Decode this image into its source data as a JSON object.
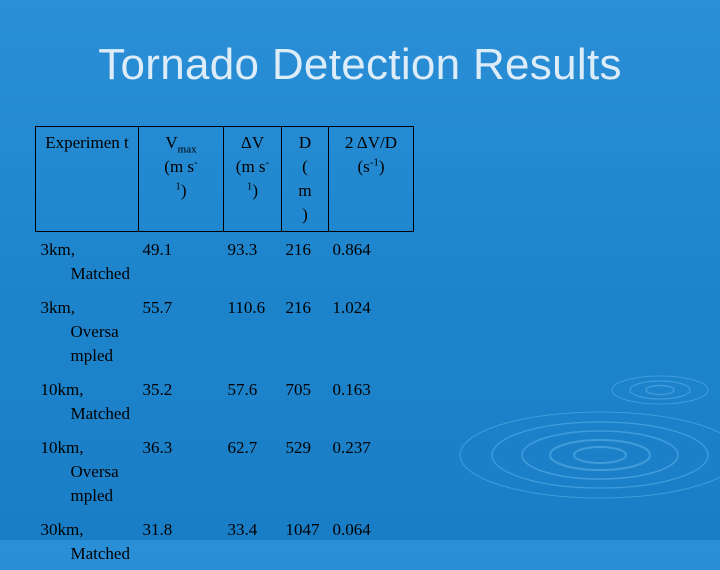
{
  "slide": {
    "title": "Tornado Detection Results"
  },
  "table": {
    "headers": {
      "experiment": "Experimen t",
      "vmax": {
        "base": "V",
        "sub": "max",
        "units_open": "(m s",
        "sup": "-1",
        "units_close": ")"
      },
      "delta_v": {
        "base": "ΔV",
        "units_open": "(m s",
        "sup": "-1",
        "units_close": ")"
      },
      "d": {
        "base": "D",
        "units": "( m )"
      },
      "ratio": {
        "base": "2 ΔV/D",
        "units_open": "(s",
        "sup": "-1",
        "units_close": ")"
      }
    },
    "rows": [
      {
        "experiment_line1": "3km,",
        "experiment_rest": "Matched",
        "vmax": "49.1",
        "delta_v": "93.3",
        "d": "216",
        "ratio": "0.864"
      },
      {
        "experiment_line1": "3km,",
        "experiment_rest": "Oversa mpled",
        "vmax": "55.7",
        "delta_v": "110.6",
        "d": "216",
        "ratio": "1.024"
      },
      {
        "experiment_line1": "10km,",
        "experiment_rest": "Matched",
        "vmax": "35.2",
        "delta_v": "57.6",
        "d": "705",
        "ratio": "0.163"
      },
      {
        "experiment_line1": "10km,",
        "experiment_rest": "Oversa mpled",
        "vmax": "36.3",
        "delta_v": "62.7",
        "d": "529",
        "ratio": "0.237"
      },
      {
        "experiment_line1": "30km,",
        "experiment_rest": "Matched",
        "vmax": "31.8",
        "delta_v": "33.4",
        "d": "1047",
        "ratio": "0.064"
      }
    ]
  }
}
